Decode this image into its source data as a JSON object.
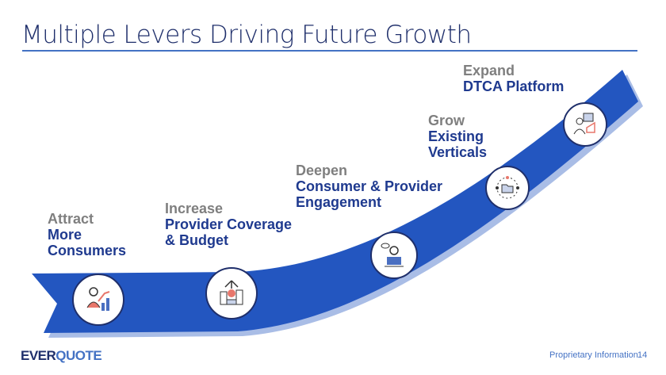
{
  "title": "Multiple Levers Driving Future Growth",
  "levers": [
    {
      "lead": "Attract",
      "body": [
        "More",
        "Consumers"
      ],
      "icon": "person-growth-chart-icon"
    },
    {
      "lead": "Increase",
      "body": [
        "Provider Coverage",
        "& Budget"
      ],
      "icon": "money-building-icon"
    },
    {
      "lead": "Deepen",
      "body": [
        "Consumer & Provider",
        "Engagement"
      ],
      "icon": "agent-laptop-chat-icon"
    },
    {
      "lead": "Grow",
      "body": [
        "Existing",
        "Verticals"
      ],
      "icon": "folder-network-icon"
    },
    {
      "lead": "Expand",
      "body": [
        "DTCA Platform"
      ],
      "icon": "agent-desk-screen-icon"
    }
  ],
  "footer": {
    "logo_part1": "EVER",
    "logo_part2": "QUOTE",
    "label": "Proprietary Information",
    "page": "14"
  },
  "colors": {
    "ribbon": "#2356c0",
    "ribbon_shadow": "#a9bde6",
    "navy": "#1f3a8f",
    "gray": "#7f7f7f"
  }
}
